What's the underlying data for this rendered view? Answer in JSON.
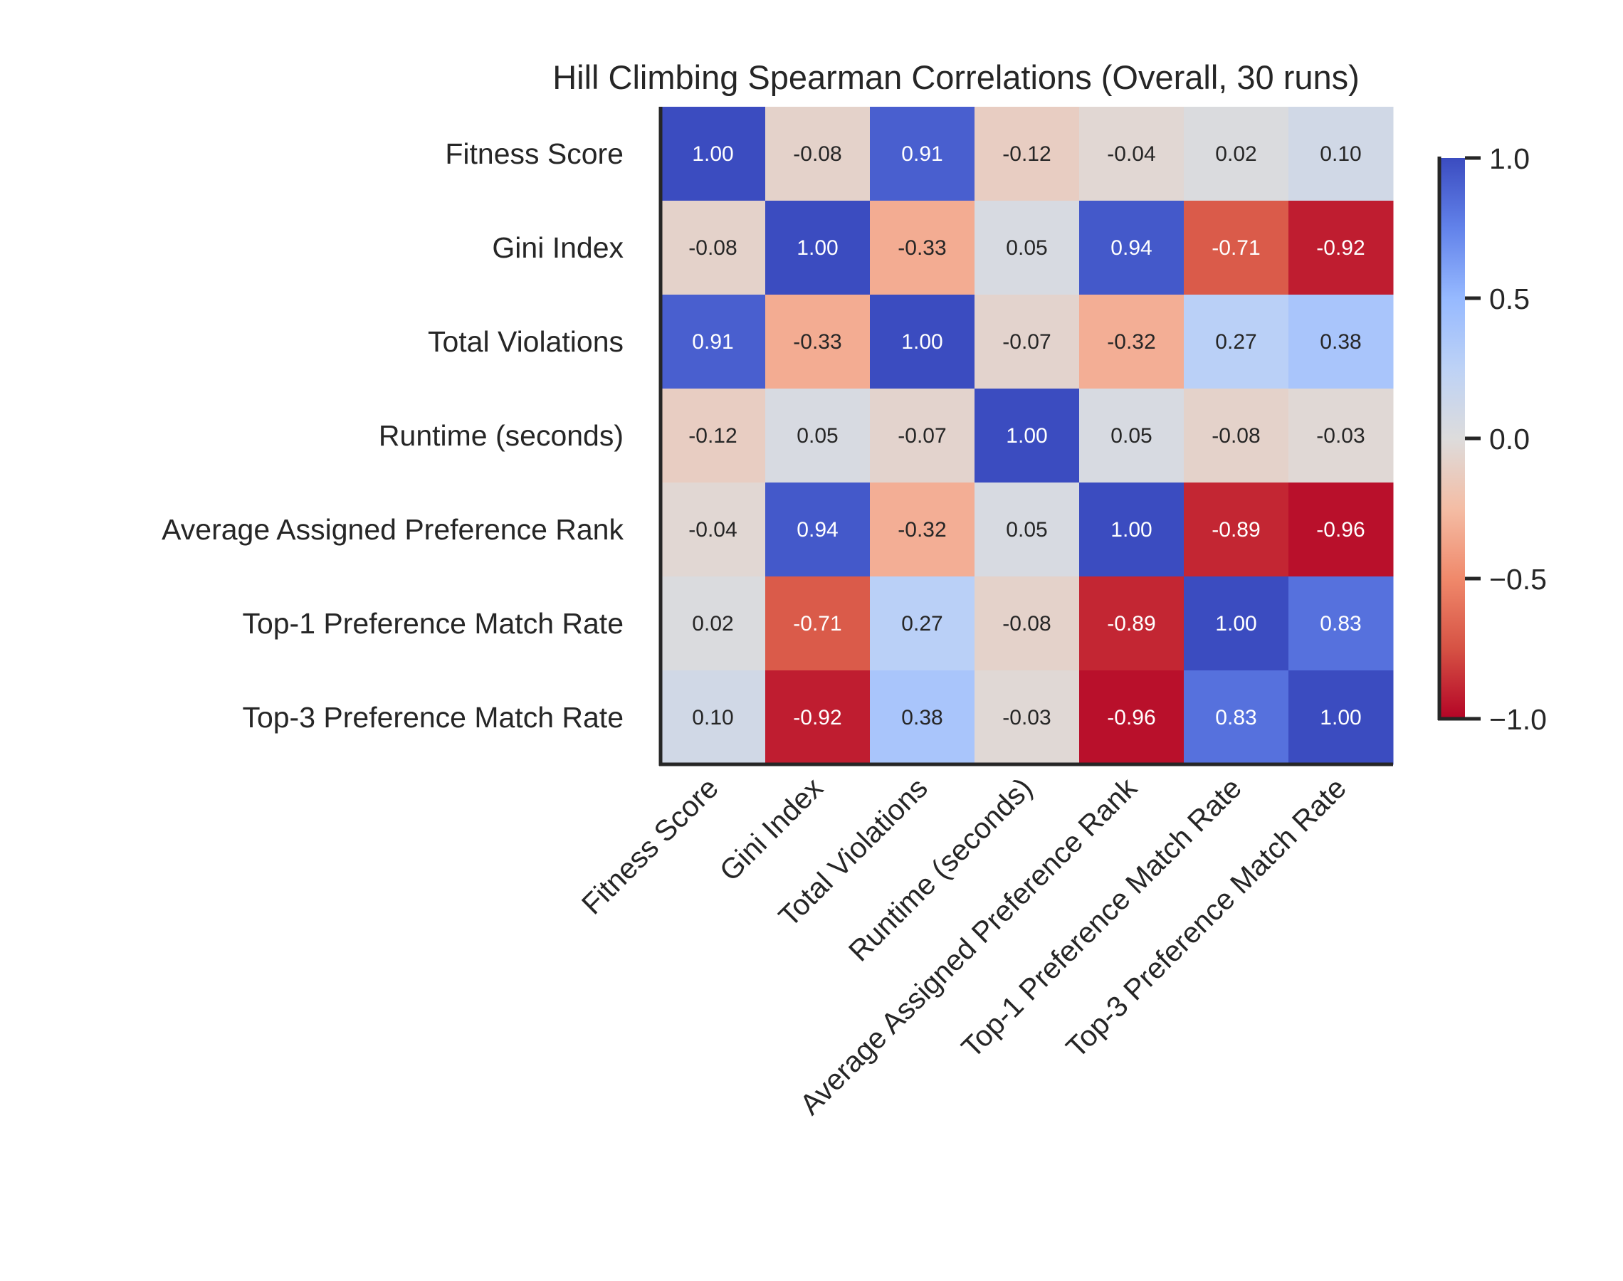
{
  "chart_data": {
    "type": "heatmap",
    "title": "Hill Climbing Spearman Correlations (Overall, 30 runs)",
    "xlabel": "",
    "ylabel": "",
    "row_labels": [
      "Fitness Score",
      "Gini Index",
      "Total Violations",
      "Runtime (seconds)",
      "Average Assigned Preference Rank",
      "Top-1 Preference Match Rate",
      "Top-3 Preference Match Rate"
    ],
    "col_labels": [
      "Fitness Score",
      "Gini Index",
      "Total Violations",
      "Runtime (seconds)",
      "Average Assigned Preference Rank",
      "Top-1 Preference Match Rate",
      "Top-3 Preference Match Rate"
    ],
    "values": [
      [
        1.0,
        -0.08,
        0.91,
        -0.12,
        -0.04,
        0.02,
        0.1
      ],
      [
        -0.08,
        1.0,
        -0.33,
        0.05,
        0.94,
        -0.71,
        -0.92
      ],
      [
        0.91,
        -0.33,
        1.0,
        -0.07,
        -0.32,
        0.27,
        0.38
      ],
      [
        -0.12,
        0.05,
        -0.07,
        1.0,
        0.05,
        -0.08,
        -0.03
      ],
      [
        -0.04,
        0.94,
        -0.32,
        0.05,
        1.0,
        -0.89,
        -0.96
      ],
      [
        0.02,
        -0.71,
        0.27,
        -0.08,
        -0.89,
        1.0,
        0.83
      ],
      [
        0.1,
        -0.92,
        0.38,
        -0.03,
        -0.96,
        0.83,
        1.0
      ]
    ],
    "value_format": "0.00",
    "colormap": "coolwarm (reversed: red = -1, blue = +1)",
    "colors": {
      "low": "#b40426",
      "mid": "#dddcdc",
      "high": "#3b4cc0"
    },
    "vmin": -1.0,
    "vmax": 1.0,
    "colorbar": {
      "ticks": [
        1.0,
        0.5,
        0.0,
        -0.5,
        -1.0
      ],
      "tick_labels": [
        "1.0",
        "0.5",
        "0.0",
        "−0.5",
        "−1.0"
      ],
      "placement": "right"
    },
    "grid": false,
    "legend": "none"
  }
}
